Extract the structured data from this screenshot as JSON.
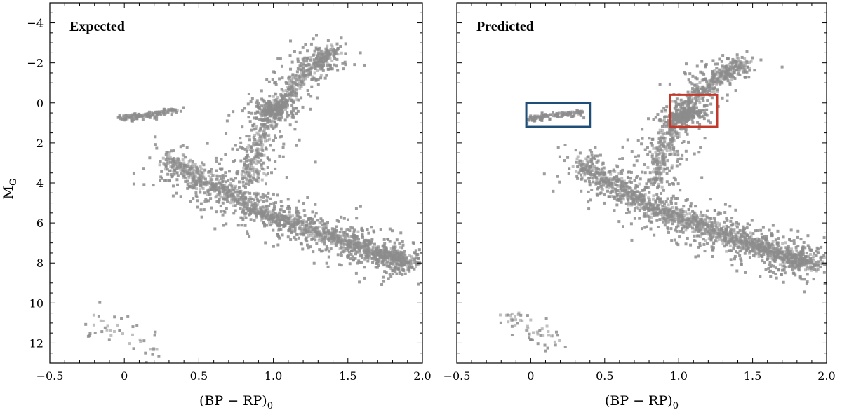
{
  "chart_data": [
    {
      "type": "scatter",
      "title": "Expected",
      "xlabel": "(BP − RP)",
      "xlabel_sub": "0",
      "ylabel": "M",
      "ylabel_sub": "G",
      "xlim": [
        -0.5,
        2.0
      ],
      "ylim": [
        13,
        -5
      ],
      "y_inverted": true,
      "grid": false,
      "xticks": [
        -0.5,
        0.0,
        0.5,
        1.0,
        1.5,
        2.0
      ],
      "xtick_labels": [
        "−0.5",
        "0",
        "0.5",
        "1.0",
        "1.5",
        "2.0"
      ],
      "yticks": [
        -4,
        -2,
        0,
        2,
        4,
        6,
        8,
        10,
        12
      ],
      "ytick_labels": [
        "−4",
        "−2",
        "0",
        "2",
        "4",
        "6",
        "8",
        "10",
        "12"
      ],
      "marker_color": "#8c8c8c",
      "structures": [
        {
          "name": "main sequence",
          "path": [
            [
              0.3,
              2.8
            ],
            [
              0.6,
              4.1
            ],
            [
              0.9,
              5.4
            ],
            [
              1.2,
              6.2
            ],
            [
              1.5,
              7.0
            ],
            [
              1.75,
              7.6
            ],
            [
              1.9,
              8.0
            ]
          ],
          "spread": 0.45,
          "count": 1900
        },
        {
          "name": "red giant branch",
          "path": [
            [
              0.85,
              3.8
            ],
            [
              0.9,
              2.0
            ],
            [
              1.0,
              0.4
            ],
            [
              1.15,
              -1.0
            ],
            [
              1.3,
              -2.0
            ],
            [
              1.4,
              -2.7
            ]
          ],
          "spread": 0.35,
          "count": 850
        },
        {
          "name": "red clump",
          "path": [
            [
              0.95,
              0.5
            ],
            [
              1.05,
              0.2
            ]
          ],
          "spread": 0.25,
          "count": 250
        },
        {
          "name": "horizontal branch",
          "path": [
            [
              -0.02,
              0.8
            ],
            [
              0.15,
              0.6
            ],
            [
              0.35,
              0.35
            ]
          ],
          "spread": 0.1,
          "count": 140
        },
        {
          "name": "white dwarfs",
          "path": [
            [
              -0.2,
              10.8
            ],
            [
              0.0,
              11.6
            ],
            [
              0.2,
              12.3
            ]
          ],
          "spread": 0.3,
          "count": 45
        }
      ]
    },
    {
      "type": "scatter",
      "title": "Predicted",
      "xlabel": "(BP − RP)",
      "xlabel_sub": "0",
      "xlim": [
        -0.5,
        2.0
      ],
      "ylim": [
        13,
        -5
      ],
      "y_inverted": true,
      "grid": false,
      "xticks": [
        -0.5,
        0.0,
        0.5,
        1.0,
        1.5,
        2.0
      ],
      "xtick_labels": [
        "−0.5",
        "0",
        "0.5",
        "1.0",
        "1.5",
        "2.0"
      ],
      "marker_color": "#8c8c8c",
      "structures": [
        {
          "name": "main sequence",
          "path": [
            [
              0.35,
              3.0
            ],
            [
              0.6,
              4.3
            ],
            [
              0.9,
              5.5
            ],
            [
              1.2,
              6.3
            ],
            [
              1.5,
              7.1
            ],
            [
              1.75,
              7.7
            ],
            [
              1.9,
              8.1
            ]
          ],
          "spread": 0.45,
          "count": 1900
        },
        {
          "name": "red giant branch",
          "path": [
            [
              0.85,
              4.0
            ],
            [
              0.9,
              2.2
            ],
            [
              1.0,
              0.6
            ],
            [
              1.15,
              -0.6
            ],
            [
              1.3,
              -1.5
            ],
            [
              1.45,
              -2.0
            ]
          ],
          "spread": 0.35,
          "count": 850
        },
        {
          "name": "red clump",
          "path": [
            [
              0.98,
              0.8
            ],
            [
              1.1,
              0.4
            ]
          ],
          "spread": 0.25,
          "count": 250
        },
        {
          "name": "horizontal branch",
          "path": [
            [
              -0.02,
              0.8
            ],
            [
              0.15,
              0.6
            ],
            [
              0.35,
              0.45
            ]
          ],
          "spread": 0.1,
          "count": 140
        },
        {
          "name": "white dwarfs",
          "path": [
            [
              -0.18,
              10.5
            ],
            [
              0.0,
              11.3
            ],
            [
              0.2,
              12.0
            ]
          ],
          "spread": 0.35,
          "count": 55
        }
      ],
      "annotations": [
        {
          "shape": "rectangle",
          "color": "#1f4e79",
          "x_range": [
            -0.03,
            0.4
          ],
          "y_range": [
            0.0,
            1.2
          ]
        },
        {
          "shape": "rectangle",
          "color": "#c0392b",
          "x_range": [
            0.94,
            1.26
          ],
          "y_range": [
            -0.4,
            1.2
          ]
        }
      ]
    }
  ]
}
